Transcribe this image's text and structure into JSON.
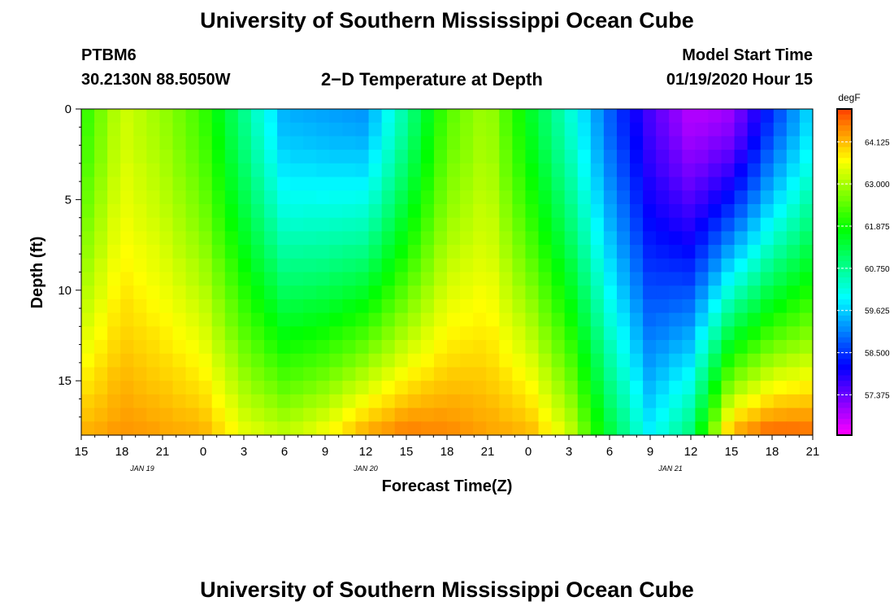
{
  "header": {
    "title": "University of Southern Mississippi Ocean Cube",
    "station": "PTBM6",
    "coords": "30.2130N 88.5050W",
    "subtitle": "2−D Temperature at Depth",
    "model_label": "Model Start Time",
    "model_time": "01/19/2020 Hour 15"
  },
  "footer": {
    "title": "University of Southern Mississippi Ocean Cube"
  },
  "chart_data": {
    "type": "heatmap",
    "title": "2-D Temperature at Depth",
    "xlabel": "Forecast Time(Z)",
    "ylabel": "Depth (ft)",
    "ylim": [
      0,
      18
    ],
    "y_ticks": [
      "0",
      "5",
      "10",
      "15"
    ],
    "x_ticks": [
      "15",
      "18",
      "21",
      "0",
      "3",
      "6",
      "9",
      "12",
      "15",
      "18",
      "21",
      "0",
      "3",
      "6",
      "9",
      "12",
      "15",
      "18",
      "21"
    ],
    "date_labels": [
      "JAN 19",
      "JAN 20",
      "JAN 21"
    ],
    "colorbar": {
      "unit": "degF",
      "range": [
        56.3,
        65.0
      ],
      "ticks": [
        "64.125",
        "63.000",
        "61.875",
        "60.750",
        "59.625",
        "58.500",
        "57.375"
      ]
    },
    "approx_surface_temp_degF": [
      62.0,
      63.3,
      62.9,
      62.2,
      60.8,
      59.4,
      59.3,
      59.2,
      60.7,
      62.4,
      63.0,
      61.6,
      60.3,
      58.8,
      57.6,
      56.8,
      57.0,
      58.5,
      59.8
    ],
    "approx_bottom_temp_degF": [
      64.2,
      64.4,
      64.3,
      64.2,
      63.5,
      63.2,
      63.6,
      64.3,
      64.6,
      64.5,
      64.3,
      64.2,
      63.3,
      61.4,
      59.9,
      61.0,
      64.3,
      64.8,
      64.7
    ]
  }
}
